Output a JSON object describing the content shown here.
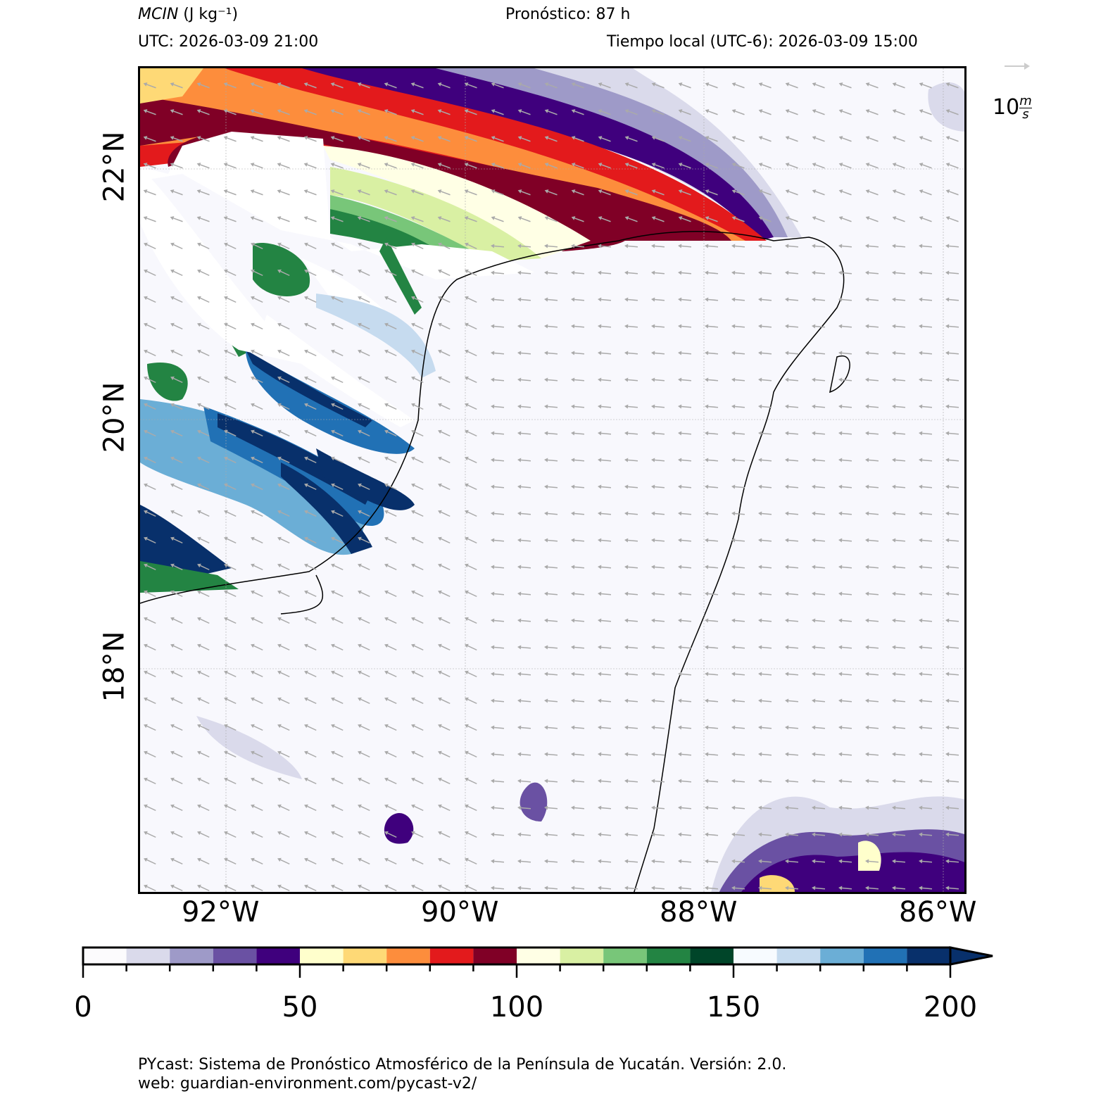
{
  "header": {
    "variable": "MCIN",
    "units": "(J kg⁻¹)",
    "forecast": "Pronóstico: 87 h",
    "utc": "UTC:  2026-03-09 21:00",
    "local": "Tiempo local (UTC-6): 2026-03-09 15:00"
  },
  "wind_key": {
    "value": "10",
    "units_num": "m",
    "units_den": "s"
  },
  "axes": {
    "lon_ticks": [
      "92°W",
      "90°W",
      "88°W",
      "86°W"
    ],
    "lat_ticks": [
      "22°N",
      "20°N",
      "18°N"
    ]
  },
  "colorbar": {
    "labels": [
      "0",
      "50",
      "100",
      "150",
      "200"
    ],
    "min": 0,
    "max": 200,
    "step": 10,
    "extend": "max",
    "colors": [
      "#fcfbfd",
      "#dadaeb",
      "#9e9ac8",
      "#6a51a3",
      "#3f007d",
      "#ffffcc",
      "#fed976",
      "#fd8d3c",
      "#e31a1c",
      "#800026",
      "#ffffe5",
      "#d9f0a3",
      "#78c679",
      "#238443",
      "#004529",
      "#f7fbff",
      "#c6dbef",
      "#6baed6",
      "#2171b5",
      "#08306b"
    ]
  },
  "footer": {
    "line1": "PYcast: Sistema de Pronóstico Atmosférico de la Península de Yucatán. Versión: 2.0.",
    "line2": "web: guardian-environment.com/pycast-v2/"
  }
}
